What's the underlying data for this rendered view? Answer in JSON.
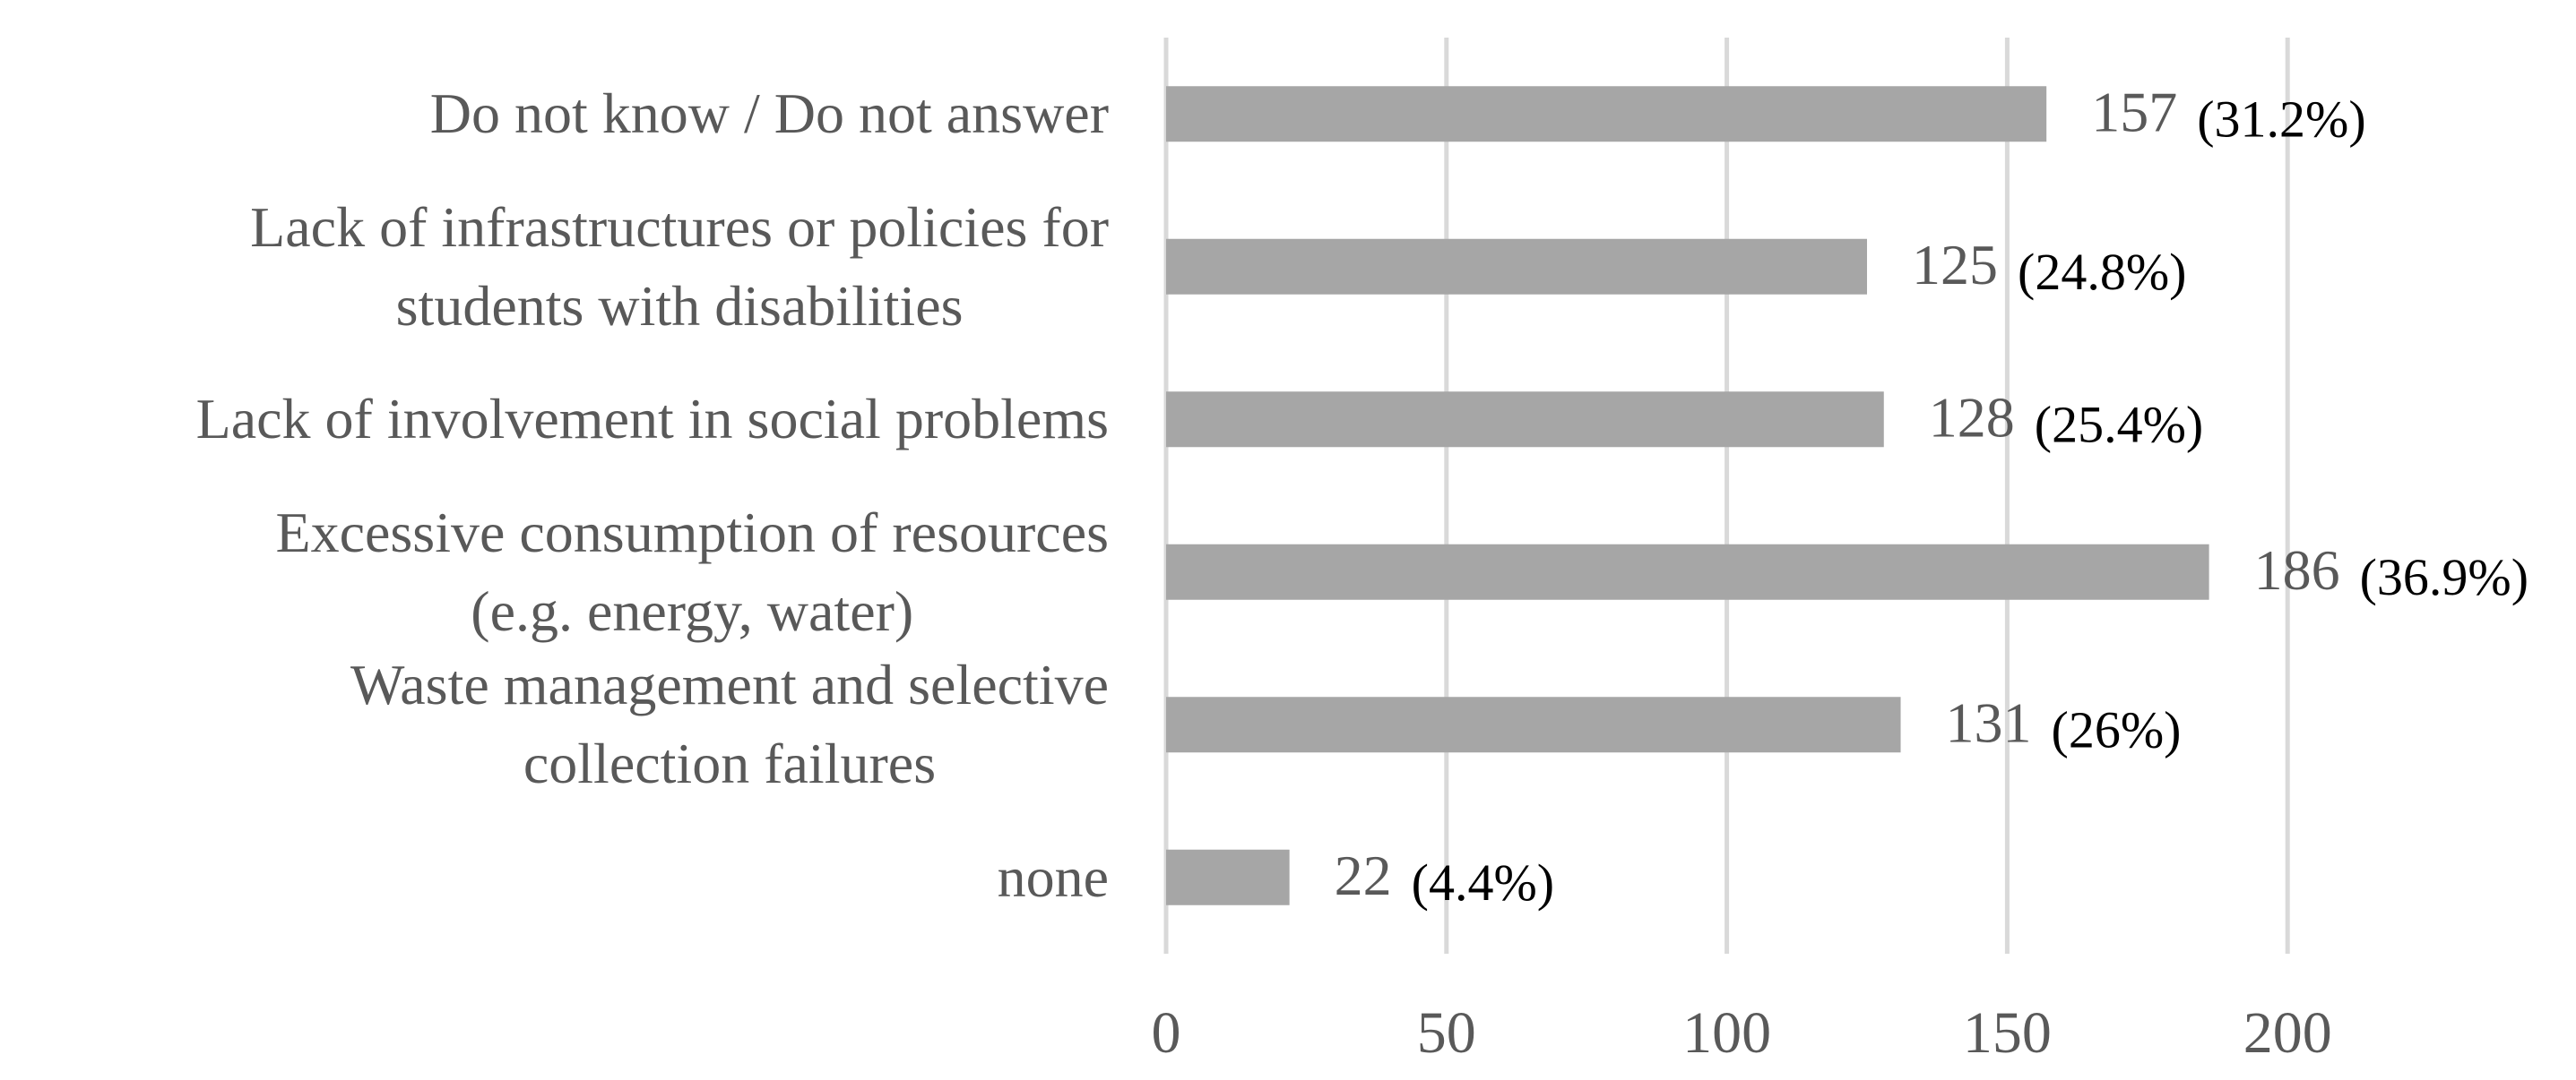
{
  "chart_data": {
    "type": "hbar",
    "categories": [
      "Do not know / Do not answer",
      "Lack of infrastructures or policies for\nstudents with disabilities",
      "Lack of involvement in social problems",
      "Excessive consumption of resources\n(e.g. energy, water)",
      "Waste management and selective\ncollection failures",
      "none"
    ],
    "values": [
      157,
      125,
      128,
      186,
      131,
      22
    ],
    "percent_labels": [
      "(31.2%)",
      "(24.8%)",
      "(25.4%)",
      "(36.9%)",
      "(26%)",
      "(4.4%)"
    ],
    "color": "#a6a6a6",
    "xlim": [
      0,
      250
    ],
    "xticks": [
      0,
      50,
      100,
      150,
      200
    ],
    "grid": true
  }
}
